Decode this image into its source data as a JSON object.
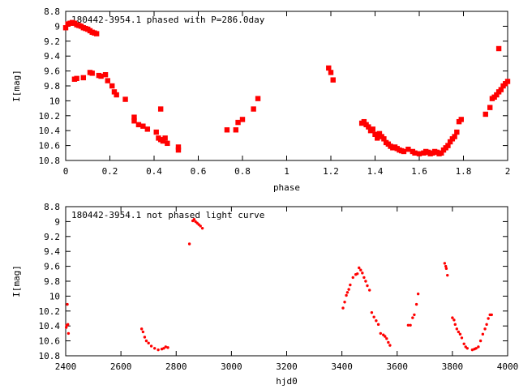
{
  "chart_data": [
    {
      "type": "scatter",
      "title": "180442-3954.1 phased with P=286.0day",
      "xlabel": "phase",
      "ylabel": "I[mag]",
      "xlim": [
        0,
        2
      ],
      "ylim": [
        8.8,
        10.8
      ],
      "y_inverted": true,
      "xticks": [
        0,
        0.2,
        0.4,
        0.6,
        0.8,
        1,
        1.2,
        1.4,
        1.6,
        1.8,
        2
      ],
      "xtick_labels": [
        "0",
        "0.2",
        "0.4",
        "0.6",
        "0.8",
        "1",
        "1.2",
        "1.4",
        "1.6",
        "1.8",
        "2"
      ],
      "yticks": [
        8.8,
        9,
        9.2,
        9.4,
        9.6,
        9.8,
        10,
        10.2,
        10.4,
        10.6,
        10.8
      ],
      "ytick_labels": [
        "8.8",
        "9",
        "9.2",
        "9.4",
        "9.6",
        "9.8",
        "10",
        "10.2",
        "10.4",
        "10.6",
        "10.8"
      ],
      "grid": false,
      "marker_color": "#ff0000",
      "marker_size": "large",
      "series": [
        {
          "x": [
            0.0,
            0.01,
            0.02,
            0.03,
            0.04,
            0.05,
            0.06,
            0.07,
            0.08,
            0.09,
            0.1,
            0.11,
            0.12,
            0.13,
            0.14,
            0.04,
            0.05,
            0.08,
            0.11,
            0.12,
            0.15,
            0.16,
            0.18,
            0.19,
            0.21,
            0.22,
            0.23,
            0.27,
            0.31,
            0.31,
            0.33,
            0.35,
            0.37,
            0.41,
            0.42,
            0.43,
            0.43,
            0.44,
            0.45,
            0.46,
            0.51,
            0.51,
            0.73,
            0.77,
            0.78,
            0.8,
            0.85,
            0.87,
            1.19,
            1.2,
            1.21,
            1.34,
            1.35,
            1.36,
            1.37,
            1.38,
            1.39,
            1.4,
            1.41,
            1.42,
            1.43,
            1.44,
            1.45,
            1.46,
            1.47,
            1.48,
            1.49,
            1.5,
            1.51,
            1.52,
            1.53,
            1.55,
            1.57,
            1.58,
            1.6,
            1.62,
            1.63,
            1.64,
            1.65,
            1.66,
            1.67,
            1.68,
            1.69,
            1.7,
            1.71,
            1.72,
            1.73,
            1.74,
            1.75,
            1.76,
            1.77,
            1.78,
            1.79,
            1.9,
            1.92,
            1.93,
            1.94,
            1.95,
            1.96,
            1.97,
            1.98,
            1.99,
            2.0,
            1.96
          ],
          "y": [
            9.02,
            8.97,
            8.96,
            8.95,
            8.96,
            8.98,
            8.99,
            9.0,
            9.02,
            9.03,
            9.04,
            9.06,
            9.08,
            9.09,
            9.1,
            9.71,
            9.7,
            9.69,
            9.62,
            9.63,
            9.66,
            9.67,
            9.65,
            9.73,
            9.8,
            9.88,
            9.92,
            9.98,
            10.22,
            10.27,
            10.32,
            10.34,
            10.38,
            10.42,
            10.5,
            10.52,
            10.11,
            10.54,
            10.5,
            10.57,
            10.62,
            10.66,
            10.39,
            10.39,
            10.29,
            10.25,
            10.11,
            9.97,
            9.56,
            9.62,
            9.72,
            10.3,
            10.28,
            10.32,
            10.35,
            10.4,
            10.38,
            10.45,
            10.5,
            10.44,
            10.48,
            10.51,
            10.56,
            10.58,
            10.61,
            10.63,
            10.62,
            10.64,
            10.66,
            10.67,
            10.68,
            10.65,
            10.68,
            10.7,
            10.71,
            10.7,
            10.68,
            10.69,
            10.71,
            10.7,
            10.68,
            10.69,
            10.71,
            10.7,
            10.66,
            10.63,
            10.6,
            10.55,
            10.51,
            10.48,
            10.42,
            10.28,
            10.25,
            10.18,
            10.09,
            9.97,
            9.95,
            9.92,
            9.88,
            9.85,
            9.8,
            9.77,
            9.74,
            9.3
          ]
        }
      ]
    },
    {
      "type": "scatter",
      "title": "180442-3954.1 not phased light curve",
      "xlabel": "hjd0",
      "ylabel": "I[mag]",
      "xlim": [
        2400,
        4000
      ],
      "ylim": [
        8.8,
        10.8
      ],
      "y_inverted": true,
      "xticks": [
        2400,
        2600,
        2800,
        3000,
        3200,
        3400,
        3600,
        3800,
        4000
      ],
      "xtick_labels": [
        "2400",
        "2600",
        "2800",
        "3000",
        "3200",
        "3400",
        "3600",
        "3800",
        "4000"
      ],
      "yticks": [
        8.8,
        9,
        9.2,
        9.4,
        9.6,
        9.8,
        10,
        10.2,
        10.4,
        10.6,
        10.8
      ],
      "ytick_labels": [
        "8.8",
        "9",
        "9.2",
        "9.4",
        "9.6",
        "9.8",
        "10",
        "10.2",
        "10.4",
        "10.6",
        "10.8"
      ],
      "grid": false,
      "marker_color": "#ff0000",
      "marker_size": "small",
      "series": [
        {
          "x": [
            2402,
            2404,
            2406,
            2408,
            2410,
            2675,
            2680,
            2686,
            2692,
            2700,
            2710,
            2722,
            2735,
            2748,
            2755,
            2762,
            2770,
            2848,
            2860,
            2865,
            2870,
            2876,
            2882,
            2888,
            2895,
            3404,
            3410,
            3416,
            3420,
            3425,
            3430,
            3440,
            3450,
            3456,
            3462,
            3468,
            3474,
            3480,
            3486,
            3492,
            3500,
            3508,
            3516,
            3524,
            3532,
            3540,
            3550,
            3556,
            3562,
            3568,
            3574,
            3640,
            3648,
            3656,
            3662,
            3670,
            3676,
            3772,
            3776,
            3778,
            3782,
            3800,
            3806,
            3810,
            3816,
            3822,
            3828,
            3834,
            3842,
            3848,
            3854,
            3872,
            3880,
            3886,
            3894,
            3902,
            3910,
            3918,
            3924,
            3930,
            3936,
            3942
          ],
          "y": [
            10.42,
            10.39,
            10.11,
            10.38,
            10.5,
            10.44,
            10.48,
            10.55,
            10.6,
            10.63,
            10.67,
            10.7,
            10.72,
            10.71,
            10.7,
            10.68,
            10.69,
            9.3,
            8.99,
            8.97,
            9.0,
            9.02,
            9.04,
            9.06,
            9.09,
            10.16,
            10.08,
            9.99,
            9.95,
            9.91,
            9.85,
            9.75,
            9.71,
            9.7,
            9.62,
            9.65,
            9.69,
            9.75,
            9.8,
            9.86,
            9.92,
            10.22,
            10.28,
            10.33,
            10.38,
            10.5,
            10.52,
            10.54,
            10.57,
            10.62,
            10.66,
            10.39,
            10.39,
            10.29,
            10.25,
            10.11,
            9.97,
            9.56,
            9.6,
            9.63,
            9.72,
            10.29,
            10.32,
            10.38,
            10.44,
            10.48,
            10.51,
            10.56,
            10.64,
            10.68,
            10.7,
            10.72,
            10.71,
            10.7,
            10.68,
            10.6,
            10.51,
            10.44,
            10.38,
            10.3,
            10.25,
            10.25
          ]
        }
      ]
    }
  ]
}
